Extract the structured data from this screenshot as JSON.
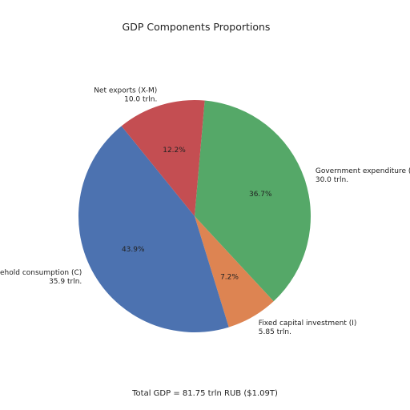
{
  "chart_data": {
    "type": "pie",
    "title": "GDP Components Proportions",
    "footer": "Total GDP = 81.75 trln RUB ($1.09T)",
    "slices": [
      {
        "name": "Government expenditure (G)",
        "value_label": "30.0 trln.",
        "value": 30.0,
        "percent_label": "36.7%",
        "color": "#55a868"
      },
      {
        "name": "Fixed capital investment (I)",
        "value_label": "5.85 trln.",
        "value": 5.85,
        "percent_label": "7.2%",
        "color": "#dd8452"
      },
      {
        "name": "Household consumption (C)",
        "value_label": "35.9 trln.",
        "value": 35.9,
        "percent_label": "43.9%",
        "color": "#4c72b0"
      },
      {
        "name": "Net exports (X-M)",
        "value_label": "10.0 trln.",
        "value": 10.0,
        "percent_label": "12.2%",
        "color": "#c44e52"
      }
    ]
  }
}
